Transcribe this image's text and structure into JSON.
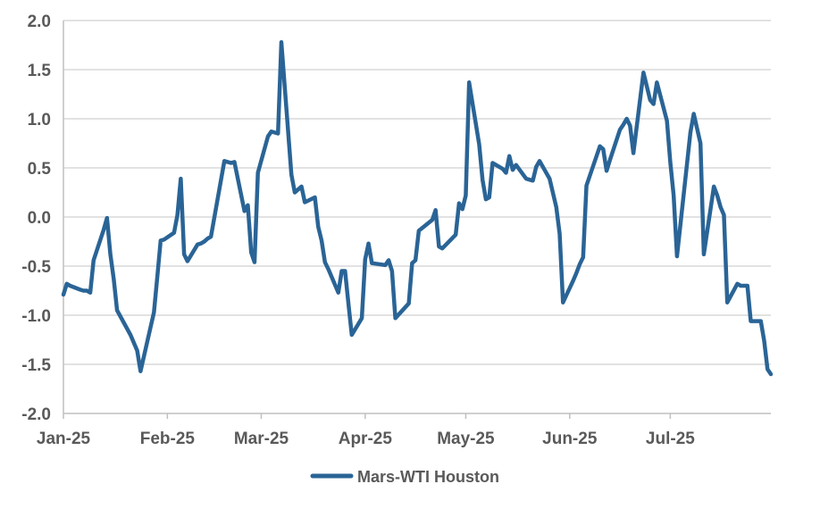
{
  "chart_data": {
    "type": "line",
    "title": "",
    "xlabel": "",
    "ylabel": "",
    "ylim": [
      -2.0,
      2.0
    ],
    "y_ticks": [
      2.0,
      1.5,
      1.0,
      0.5,
      0.0,
      -0.5,
      -1.0,
      -1.5,
      -2.0
    ],
    "y_tick_labels": [
      "2.0",
      "1.5",
      "1.0",
      "0.5",
      "0.0",
      "-0.5",
      "-1.0",
      "-1.5",
      "-2.0"
    ],
    "x_range": [
      "2025-01-01",
      "2025-07-31"
    ],
    "x_ticks": [
      "2025-01-01",
      "2025-02-01",
      "2025-03-01",
      "2025-04-01",
      "2025-05-01",
      "2025-06-01",
      "2025-07-01"
    ],
    "x_tick_labels": [
      "Jan-25",
      "Feb-25",
      "Mar-25",
      "Apr-25",
      "May-25",
      "Jun-25",
      "Jul-25"
    ],
    "grid": {
      "horizontal": true,
      "vertical": false
    },
    "legend_position": "bottom-center",
    "colors": {
      "series": "#2A6496",
      "grid": "#D9D9D9",
      "axis": "#BFBFBF",
      "text": "#595959"
    },
    "series": [
      {
        "name": "Mars-WTI Houston",
        "points": [
          {
            "x": "2025-01-01",
            "y": -0.79
          },
          {
            "x": "2025-01-02",
            "y": -0.68
          },
          {
            "x": "2025-01-03",
            "y": -0.7
          },
          {
            "x": "2025-01-06",
            "y": -0.74
          },
          {
            "x": "2025-01-07",
            "y": -0.75
          },
          {
            "x": "2025-01-08",
            "y": -0.75
          },
          {
            "x": "2025-01-09",
            "y": -0.77
          },
          {
            "x": "2025-01-10",
            "y": -0.44
          },
          {
            "x": "2025-01-13",
            "y": -0.13
          },
          {
            "x": "2025-01-14",
            "y": -0.01
          },
          {
            "x": "2025-01-15",
            "y": -0.38
          },
          {
            "x": "2025-01-16",
            "y": -0.63
          },
          {
            "x": "2025-01-17",
            "y": -0.95
          },
          {
            "x": "2025-01-21",
            "y": -1.2
          },
          {
            "x": "2025-01-23",
            "y": -1.36
          },
          {
            "x": "2025-01-24",
            "y": -1.57
          },
          {
            "x": "2025-01-28",
            "y": -0.97
          },
          {
            "x": "2025-01-29",
            "y": -0.61
          },
          {
            "x": "2025-01-30",
            "y": -0.24
          },
          {
            "x": "2025-01-31",
            "y": -0.23
          },
          {
            "x": "2025-02-03",
            "y": -0.16
          },
          {
            "x": "2025-02-04",
            "y": 0.02
          },
          {
            "x": "2025-02-05",
            "y": 0.39
          },
          {
            "x": "2025-02-06",
            "y": -0.38
          },
          {
            "x": "2025-02-07",
            "y": -0.45
          },
          {
            "x": "2025-02-10",
            "y": -0.28
          },
          {
            "x": "2025-02-11",
            "y": -0.27
          },
          {
            "x": "2025-02-12",
            "y": -0.25
          },
          {
            "x": "2025-02-13",
            "y": -0.22
          },
          {
            "x": "2025-02-14",
            "y": -0.2
          },
          {
            "x": "2025-02-18",
            "y": 0.57
          },
          {
            "x": "2025-02-20",
            "y": 0.55
          },
          {
            "x": "2025-02-21",
            "y": 0.56
          },
          {
            "x": "2025-02-24",
            "y": 0.06
          },
          {
            "x": "2025-02-25",
            "y": 0.12
          },
          {
            "x": "2025-02-26",
            "y": -0.36
          },
          {
            "x": "2025-02-27",
            "y": -0.46
          },
          {
            "x": "2025-02-28",
            "y": 0.45
          },
          {
            "x": "2025-03-03",
            "y": 0.82
          },
          {
            "x": "2025-03-04",
            "y": 0.87
          },
          {
            "x": "2025-03-05",
            "y": 0.86
          },
          {
            "x": "2025-03-06",
            "y": 0.85
          },
          {
            "x": "2025-03-07",
            "y": 1.78
          },
          {
            "x": "2025-03-10",
            "y": 0.43
          },
          {
            "x": "2025-03-11",
            "y": 0.25
          },
          {
            "x": "2025-03-12",
            "y": 0.28
          },
          {
            "x": "2025-03-13",
            "y": 0.31
          },
          {
            "x": "2025-03-14",
            "y": 0.15
          },
          {
            "x": "2025-03-17",
            "y": 0.2
          },
          {
            "x": "2025-03-18",
            "y": -0.1
          },
          {
            "x": "2025-03-19",
            "y": -0.24
          },
          {
            "x": "2025-03-20",
            "y": -0.46
          },
          {
            "x": "2025-03-21",
            "y": -0.53
          },
          {
            "x": "2025-03-24",
            "y": -0.77
          },
          {
            "x": "2025-03-25",
            "y": -0.55
          },
          {
            "x": "2025-03-26",
            "y": -0.55
          },
          {
            "x": "2025-03-27",
            "y": -0.88
          },
          {
            "x": "2025-03-28",
            "y": -1.2
          },
          {
            "x": "2025-03-31",
            "y": -1.03
          },
          {
            "x": "2025-04-01",
            "y": -0.43
          },
          {
            "x": "2025-04-02",
            "y": -0.27
          },
          {
            "x": "2025-04-03",
            "y": -0.47
          },
          {
            "x": "2025-04-07",
            "y": -0.49
          },
          {
            "x": "2025-04-08",
            "y": -0.44
          },
          {
            "x": "2025-04-09",
            "y": -0.55
          },
          {
            "x": "2025-04-10",
            "y": -1.03
          },
          {
            "x": "2025-04-14",
            "y": -0.88
          },
          {
            "x": "2025-04-15",
            "y": -0.47
          },
          {
            "x": "2025-04-16",
            "y": -0.44
          },
          {
            "x": "2025-04-17",
            "y": -0.14
          },
          {
            "x": "2025-04-21",
            "y": -0.03
          },
          {
            "x": "2025-04-22",
            "y": 0.07
          },
          {
            "x": "2025-04-23",
            "y": -0.3
          },
          {
            "x": "2025-04-24",
            "y": -0.32
          },
          {
            "x": "2025-04-28",
            "y": -0.18
          },
          {
            "x": "2025-04-29",
            "y": 0.14
          },
          {
            "x": "2025-04-30",
            "y": 0.08
          },
          {
            "x": "2025-05-01",
            "y": 0.22
          },
          {
            "x": "2025-05-02",
            "y": 1.37
          },
          {
            "x": "2025-05-05",
            "y": 0.74
          },
          {
            "x": "2025-05-06",
            "y": 0.38
          },
          {
            "x": "2025-05-07",
            "y": 0.18
          },
          {
            "x": "2025-05-08",
            "y": 0.2
          },
          {
            "x": "2025-05-09",
            "y": 0.55
          },
          {
            "x": "2025-05-12",
            "y": 0.49
          },
          {
            "x": "2025-05-13",
            "y": 0.45
          },
          {
            "x": "2025-05-14",
            "y": 0.62
          },
          {
            "x": "2025-05-15",
            "y": 0.48
          },
          {
            "x": "2025-05-16",
            "y": 0.53
          },
          {
            "x": "2025-05-19",
            "y": 0.39
          },
          {
            "x": "2025-05-20",
            "y": 0.38
          },
          {
            "x": "2025-05-21",
            "y": 0.37
          },
          {
            "x": "2025-05-22",
            "y": 0.51
          },
          {
            "x": "2025-05-23",
            "y": 0.57
          },
          {
            "x": "2025-05-26",
            "y": 0.39
          },
          {
            "x": "2025-05-28",
            "y": 0.1
          },
          {
            "x": "2025-05-29",
            "y": -0.17
          },
          {
            "x": "2025-05-30",
            "y": -0.87
          },
          {
            "x": "2025-06-02",
            "y": -0.65
          },
          {
            "x": "2025-06-03",
            "y": -0.57
          },
          {
            "x": "2025-06-04",
            "y": -0.48
          },
          {
            "x": "2025-06-05",
            "y": -0.41
          },
          {
            "x": "2025-06-06",
            "y": 0.32
          },
          {
            "x": "2025-06-09",
            "y": 0.62
          },
          {
            "x": "2025-06-10",
            "y": 0.72
          },
          {
            "x": "2025-06-11",
            "y": 0.69
          },
          {
            "x": "2025-06-12",
            "y": 0.47
          },
          {
            "x": "2025-06-13",
            "y": 0.58
          },
          {
            "x": "2025-06-16",
            "y": 0.89
          },
          {
            "x": "2025-06-17",
            "y": 0.94
          },
          {
            "x": "2025-06-18",
            "y": 1.0
          },
          {
            "x": "2025-06-19",
            "y": 0.93
          },
          {
            "x": "2025-06-20",
            "y": 0.65
          },
          {
            "x": "2025-06-23",
            "y": 1.47
          },
          {
            "x": "2025-06-24",
            "y": 1.33
          },
          {
            "x": "2025-06-25",
            "y": 1.19
          },
          {
            "x": "2025-06-26",
            "y": 1.15
          },
          {
            "x": "2025-06-27",
            "y": 1.37
          },
          {
            "x": "2025-06-30",
            "y": 0.98
          },
          {
            "x": "2025-07-01",
            "y": 0.56
          },
          {
            "x": "2025-07-02",
            "y": 0.22
          },
          {
            "x": "2025-07-03",
            "y": -0.4
          },
          {
            "x": "2025-07-07",
            "y": 0.86
          },
          {
            "x": "2025-07-08",
            "y": 1.05
          },
          {
            "x": "2025-07-09",
            "y": 0.9
          },
          {
            "x": "2025-07-10",
            "y": 0.75
          },
          {
            "x": "2025-07-11",
            "y": -0.38
          },
          {
            "x": "2025-07-14",
            "y": 0.31
          },
          {
            "x": "2025-07-15",
            "y": 0.22
          },
          {
            "x": "2025-07-16",
            "y": 0.1
          },
          {
            "x": "2025-07-17",
            "y": 0.02
          },
          {
            "x": "2025-07-18",
            "y": -0.87
          },
          {
            "x": "2025-07-21",
            "y": -0.68
          },
          {
            "x": "2025-07-22",
            "y": -0.7
          },
          {
            "x": "2025-07-23",
            "y": -0.7
          },
          {
            "x": "2025-07-24",
            "y": -0.7
          },
          {
            "x": "2025-07-25",
            "y": -1.06
          },
          {
            "x": "2025-07-28",
            "y": -1.06
          },
          {
            "x": "2025-07-29",
            "y": -1.26
          },
          {
            "x": "2025-07-30",
            "y": -1.55
          },
          {
            "x": "2025-07-31",
            "y": -1.6
          }
        ]
      }
    ]
  }
}
